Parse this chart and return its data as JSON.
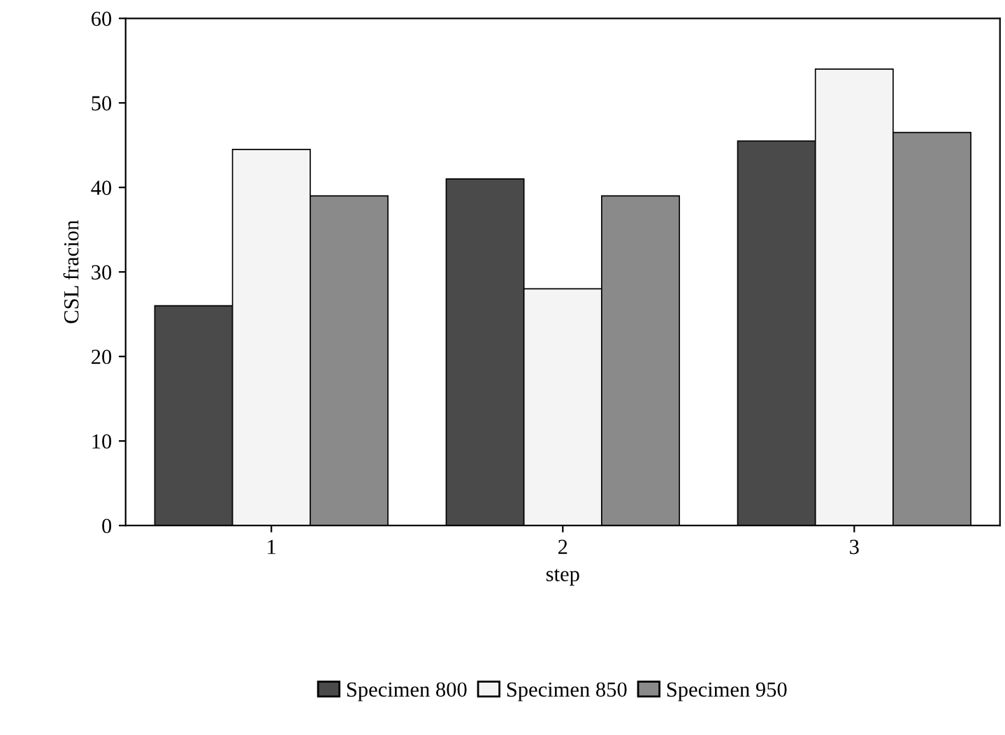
{
  "chart_data": {
    "type": "bar",
    "xlabel": "step",
    "ylabel": "CSL fracion",
    "categories": [
      "1",
      "2",
      "3"
    ],
    "series": [
      {
        "name": "Specimen 800",
        "color": "#4a4a4a",
        "values": [
          26,
          41,
          45.5
        ]
      },
      {
        "name": "Specimen 850",
        "color": "#f4f4f4",
        "values": [
          44.5,
          28,
          54
        ]
      },
      {
        "name": "Specimen 950",
        "color": "#8a8a8a",
        "values": [
          39,
          39,
          46.5
        ]
      }
    ],
    "ylim": [
      0,
      60
    ],
    "yticks": [
      0,
      10,
      20,
      30,
      40,
      50,
      60
    ],
    "grid": false,
    "legend": "bottom"
  }
}
